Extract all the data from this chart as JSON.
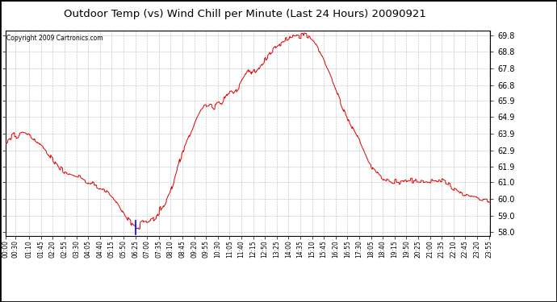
{
  "title": "Outdoor Temp (vs) Wind Chill per Minute (Last 24 Hours) 20090921",
  "copyright_text": "Copyright 2009 Cartronics.com",
  "y_ticks": [
    58.0,
    59.0,
    60.0,
    61.0,
    61.9,
    62.9,
    63.9,
    64.9,
    65.9,
    66.8,
    67.8,
    68.8,
    69.8
  ],
  "ylim": [
    57.8,
    70.1
  ],
  "background_color": "#ffffff",
  "plot_bg_color": "#ffffff",
  "grid_color": "#bbbbbb",
  "line_color": "#dd0000",
  "x_labels": [
    "00:00",
    "00:30",
    "01:10",
    "01:45",
    "02:20",
    "02:55",
    "03:30",
    "04:05",
    "04:40",
    "05:15",
    "05:50",
    "06:25",
    "07:00",
    "07:35",
    "08:10",
    "08:45",
    "09:20",
    "09:55",
    "10:30",
    "11:05",
    "11:40",
    "12:15",
    "12:50",
    "13:25",
    "14:00",
    "14:35",
    "15:10",
    "15:45",
    "16:20",
    "16:55",
    "17:30",
    "18:05",
    "18:40",
    "19:15",
    "19:50",
    "20:25",
    "21:00",
    "21:35",
    "22:10",
    "22:45",
    "23:20",
    "23:55"
  ],
  "control_points": [
    [
      0,
      63.3
    ],
    [
      25,
      63.7
    ],
    [
      50,
      63.9
    ],
    [
      75,
      63.8
    ],
    [
      100,
      63.3
    ],
    [
      125,
      62.8
    ],
    [
      150,
      62.0
    ],
    [
      175,
      61.6
    ],
    [
      200,
      61.4
    ],
    [
      220,
      61.3
    ],
    [
      240,
      61.1
    ],
    [
      260,
      60.9
    ],
    [
      280,
      60.7
    ],
    [
      300,
      60.5
    ],
    [
      315,
      60.2
    ],
    [
      325,
      60.0
    ],
    [
      335,
      59.7
    ],
    [
      345,
      59.3
    ],
    [
      355,
      59.0
    ],
    [
      365,
      58.7
    ],
    [
      375,
      58.5
    ],
    [
      382,
      58.35
    ],
    [
      388,
      58.3
    ],
    [
      395,
      58.35
    ],
    [
      405,
      58.5
    ],
    [
      415,
      58.6
    ],
    [
      425,
      58.65
    ],
    [
      435,
      58.7
    ],
    [
      445,
      58.9
    ],
    [
      460,
      59.3
    ],
    [
      475,
      59.8
    ],
    [
      490,
      60.5
    ],
    [
      505,
      61.5
    ],
    [
      520,
      62.5
    ],
    [
      535,
      63.3
    ],
    [
      550,
      64.0
    ],
    [
      560,
      64.5
    ],
    [
      570,
      65.0
    ],
    [
      580,
      65.4
    ],
    [
      590,
      65.6
    ],
    [
      600,
      65.65
    ],
    [
      610,
      65.7
    ],
    [
      615,
      65.6
    ],
    [
      620,
      65.5
    ],
    [
      628,
      65.8
    ],
    [
      635,
      65.85
    ],
    [
      642,
      65.7
    ],
    [
      650,
      66.0
    ],
    [
      660,
      66.4
    ],
    [
      670,
      66.5
    ],
    [
      678,
      66.3
    ],
    [
      685,
      66.5
    ],
    [
      692,
      66.7
    ],
    [
      700,
      67.0
    ],
    [
      710,
      67.3
    ],
    [
      718,
      67.6
    ],
    [
      725,
      67.8
    ],
    [
      732,
      67.5
    ],
    [
      738,
      67.7
    ],
    [
      745,
      67.6
    ],
    [
      752,
      67.8
    ],
    [
      760,
      68.0
    ],
    [
      770,
      68.3
    ],
    [
      785,
      68.7
    ],
    [
      800,
      69.0
    ],
    [
      815,
      69.3
    ],
    [
      830,
      69.5
    ],
    [
      845,
      69.7
    ],
    [
      860,
      69.8
    ],
    [
      875,
      69.75
    ],
    [
      888,
      69.8
    ],
    [
      900,
      69.7
    ],
    [
      912,
      69.5
    ],
    [
      925,
      69.1
    ],
    [
      940,
      68.5
    ],
    [
      960,
      67.6
    ],
    [
      980,
      66.6
    ],
    [
      1000,
      65.5
    ],
    [
      1020,
      64.6
    ],
    [
      1040,
      63.9
    ],
    [
      1055,
      63.3
    ],
    [
      1065,
      62.8
    ],
    [
      1075,
      62.3
    ],
    [
      1090,
      61.9
    ],
    [
      1105,
      61.6
    ],
    [
      1120,
      61.3
    ],
    [
      1135,
      61.1
    ],
    [
      1150,
      61.0
    ],
    [
      1165,
      61.0
    ],
    [
      1180,
      61.05
    ],
    [
      1195,
      61.1
    ],
    [
      1210,
      61.1
    ],
    [
      1225,
      61.05
    ],
    [
      1240,
      61.0
    ],
    [
      1255,
      61.05
    ],
    [
      1270,
      61.1
    ],
    [
      1285,
      61.05
    ],
    [
      1300,
      61.0
    ],
    [
      1315,
      60.9
    ],
    [
      1330,
      60.7
    ],
    [
      1345,
      60.5
    ],
    [
      1360,
      60.3
    ],
    [
      1375,
      60.2
    ],
    [
      1390,
      60.1
    ],
    [
      1405,
      60.05
    ],
    [
      1420,
      60.0
    ],
    [
      1430,
      59.95
    ],
    [
      1439,
      59.8
    ]
  ]
}
